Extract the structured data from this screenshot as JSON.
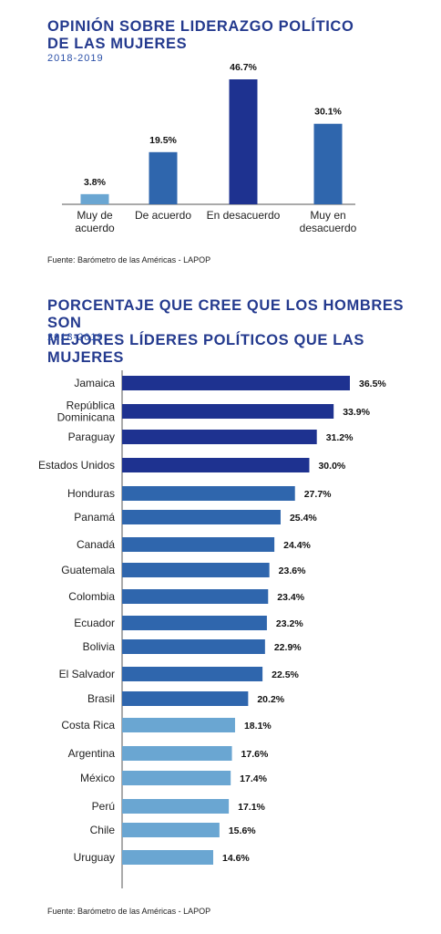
{
  "chart1": {
    "title_line1": "OPINIÓN SOBRE LIDERAZGO POLÍTICO",
    "title_line2": "DE LAS MUJERES",
    "subtitle": "2018-2019",
    "source": "Fuente: Barómetro de las Américas - LAPOP"
  },
  "chart2": {
    "title_line1": "PORCENTAJE QUE CREE QUE LOS HOMBRES SON",
    "title_line2": "MEJORES LÍDERES POLÍTICOS QUE LAS MUJERES",
    "subtitle": "2018-2019",
    "source": "Fuente: Barómetro de las Américas - LAPOP"
  },
  "colors": {
    "dark_navy": "#1e3290",
    "mid_blue": "#2f66ad",
    "light_blue": "#6aa6d2",
    "axis": "#555555"
  },
  "chart_data": [
    {
      "type": "bar",
      "title": "OPINIÓN SOBRE LIDERAZGO POLÍTICO DE LAS MUJERES",
      "subtitle": "2018-2019",
      "categories": [
        [
          "Muy de",
          "acuerdo"
        ],
        [
          "De acuerdo"
        ],
        [
          "En desacuerdo"
        ],
        [
          "Muy en",
          "desacuerdo"
        ]
      ],
      "values": [
        3.8,
        19.5,
        46.7,
        30.1
      ],
      "value_labels": [
        "3.8%",
        "19.5%",
        "46.7%",
        "30.1%"
      ],
      "bar_colors": [
        "light_blue",
        "mid_blue",
        "dark_navy",
        "mid_blue"
      ],
      "ylim": [
        0,
        46.7
      ],
      "grid": false,
      "legend": "none"
    },
    {
      "type": "bar",
      "orientation": "horizontal",
      "title": "PORCENTAJE QUE CREE QUE LOS HOMBRES SON MEJORES LÍDERES POLÍTICOS QUE LAS MUJERES",
      "subtitle": "2018-2019",
      "categories": [
        [
          "Jamaica"
        ],
        [
          "República",
          "Dominicana"
        ],
        [
          "Paraguay"
        ],
        [
          "Estados Unidos"
        ],
        [
          "Honduras"
        ],
        [
          "Panamá"
        ],
        [
          "Canadá"
        ],
        [
          "Guatemala"
        ],
        [
          "Colombia"
        ],
        [
          "Ecuador"
        ],
        [
          "Bolivia"
        ],
        [
          "El Salvador"
        ],
        [
          "Brasil"
        ],
        [
          "Costa Rica"
        ],
        [
          "Argentina"
        ],
        [
          "México"
        ],
        [
          "Perú"
        ],
        [
          "Chile"
        ],
        [
          "Uruguay"
        ]
      ],
      "values": [
        36.5,
        33.9,
        31.2,
        30.0,
        27.7,
        25.4,
        24.4,
        23.6,
        23.4,
        23.2,
        22.9,
        22.5,
        20.2,
        18.1,
        17.6,
        17.4,
        17.1,
        15.6,
        14.6
      ],
      "value_labels": [
        "36.5%",
        "33.9%",
        "31.2%",
        "30.0%",
        "27.7%",
        "25.4%",
        "24.4%",
        "23.6%",
        "23.4%",
        "23.2%",
        "22.9%",
        "22.5%",
        "20.2%",
        "18.1%",
        "17.6%",
        "17.4%",
        "17.1%",
        "15.6%",
        "14.6%"
      ],
      "bar_colors": [
        "dark_navy",
        "dark_navy",
        "dark_navy",
        "dark_navy",
        "mid_blue",
        "mid_blue",
        "mid_blue",
        "mid_blue",
        "mid_blue",
        "mid_blue",
        "mid_blue",
        "mid_blue",
        "mid_blue",
        "light_blue",
        "light_blue",
        "light_blue",
        "light_blue",
        "light_blue",
        "light_blue"
      ],
      "xlim": [
        0,
        36.5
      ],
      "grid": false,
      "legend": "none"
    }
  ]
}
